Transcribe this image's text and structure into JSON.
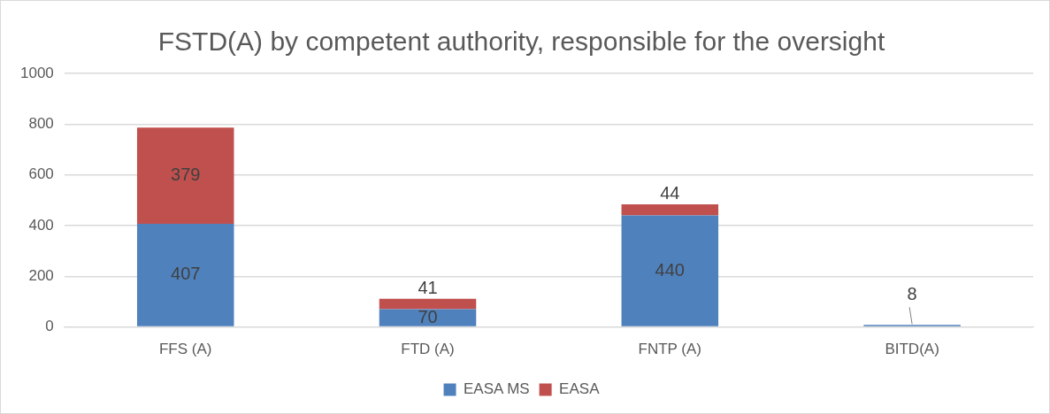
{
  "chart_data": {
    "type": "bar",
    "title": "FSTD(A) by competent authority, responsible for the oversight",
    "categories": [
      "FFS (A)",
      "FTD (A)",
      "FNTP (A)",
      "BITD(A)"
    ],
    "stacked": true,
    "series": [
      {
        "name": "EASA MS",
        "color": "#4f81bd",
        "values": [
          407,
          70,
          440,
          8
        ]
      },
      {
        "name": "EASA",
        "color": "#c0504d",
        "values": [
          379,
          41,
          44,
          null
        ]
      }
    ],
    "ylim": [
      0,
      1000
    ],
    "yticks": [
      0,
      200,
      400,
      600,
      800,
      1000
    ],
    "grid": "y",
    "legend": "bottom",
    "data_labels": true
  }
}
